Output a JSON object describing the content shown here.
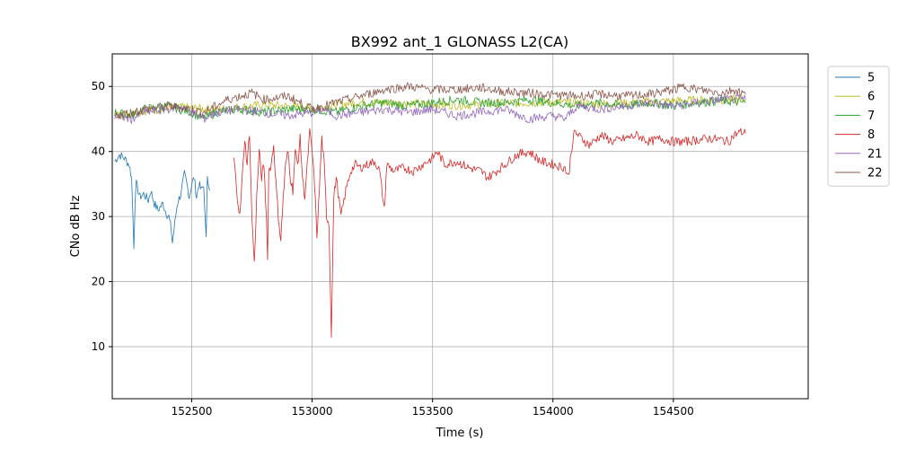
{
  "chart_data": {
    "type": "line",
    "title": "BX992 ant_1 GLONASS L2(CA)",
    "xlabel": "Time (s)",
    "ylabel": "CNo dB Hz",
    "xlim": [
      152170,
      155060
    ],
    "ylim": [
      2,
      55
    ],
    "xticks": [
      152500,
      153000,
      153500,
      154000,
      154500
    ],
    "yticks": [
      10,
      20,
      30,
      40,
      50
    ],
    "grid": true,
    "legend_position": "upper-right-outside",
    "series": [
      {
        "name": "5",
        "color": "#1f77b4",
        "points": [
          [
            152180,
            38.5
          ],
          [
            152200,
            39.5
          ],
          [
            152220,
            39
          ],
          [
            152240,
            38
          ],
          [
            152250,
            36
          ],
          [
            152255,
            31
          ],
          [
            152260,
            25.5
          ],
          [
            152265,
            33
          ],
          [
            152270,
            35
          ],
          [
            152285,
            33
          ],
          [
            152300,
            33.5
          ],
          [
            152320,
            32.5
          ],
          [
            152330,
            34
          ],
          [
            152345,
            32
          ],
          [
            152360,
            31
          ],
          [
            152380,
            32
          ],
          [
            152395,
            30.5
          ],
          [
            152405,
            30
          ],
          [
            152415,
            28
          ],
          [
            152420,
            26
          ],
          [
            152430,
            29
          ],
          [
            152440,
            32
          ],
          [
            152455,
            33.5
          ],
          [
            152470,
            36.5
          ],
          [
            152480,
            35
          ],
          [
            152490,
            33
          ],
          [
            152500,
            35
          ],
          [
            152510,
            36
          ],
          [
            152520,
            33
          ],
          [
            152530,
            35
          ],
          [
            152540,
            34
          ],
          [
            152550,
            35
          ],
          [
            152555,
            30
          ],
          [
            152560,
            26.3
          ],
          [
            152565,
            36.5
          ],
          [
            152575,
            34
          ]
        ]
      },
      {
        "name": "6",
        "color": "#bcbd22",
        "points": [
          [
            152180,
            45.5
          ],
          [
            152300,
            46.2
          ],
          [
            152450,
            46.8
          ],
          [
            152600,
            46.4
          ],
          [
            152800,
            47.2
          ],
          [
            153000,
            46.7
          ],
          [
            153200,
            47.6
          ],
          [
            153400,
            47.4
          ],
          [
            153600,
            47.1
          ],
          [
            153800,
            47.4
          ],
          [
            154000,
            47.6
          ],
          [
            154200,
            47.3
          ],
          [
            154400,
            47.6
          ],
          [
            154600,
            47.9
          ],
          [
            154800,
            48
          ]
        ]
      },
      {
        "name": "7",
        "color": "#2ca02c",
        "points": [
          [
            152180,
            46
          ],
          [
            152250,
            45.5
          ],
          [
            152300,
            46.5
          ],
          [
            152400,
            47
          ],
          [
            152500,
            46
          ],
          [
            152550,
            45
          ],
          [
            152600,
            46
          ],
          [
            152700,
            46.5
          ],
          [
            152800,
            46
          ],
          [
            152900,
            46.5
          ],
          [
            153000,
            46.5
          ],
          [
            153100,
            46
          ],
          [
            153200,
            47
          ],
          [
            153300,
            47.5
          ],
          [
            153400,
            47
          ],
          [
            153500,
            47.5
          ],
          [
            153600,
            48
          ],
          [
            153700,
            47.5
          ],
          [
            153800,
            47.5
          ],
          [
            153900,
            48
          ],
          [
            154000,
            47.5
          ],
          [
            154100,
            47
          ],
          [
            154200,
            47.5
          ],
          [
            154300,
            47
          ],
          [
            154400,
            47.5
          ],
          [
            154500,
            47
          ],
          [
            154600,
            47.5
          ],
          [
            154700,
            47.8
          ],
          [
            154800,
            47.5
          ]
        ]
      },
      {
        "name": "8",
        "color": "#d62728",
        "points": [
          [
            152675,
            39
          ],
          [
            152690,
            33
          ],
          [
            152700,
            30
          ],
          [
            152710,
            36
          ],
          [
            152720,
            42
          ],
          [
            152730,
            38
          ],
          [
            152740,
            43
          ],
          [
            152750,
            30
          ],
          [
            152760,
            22.7
          ],
          [
            152770,
            33
          ],
          [
            152780,
            40
          ],
          [
            152790,
            36
          ],
          [
            152800,
            38
          ],
          [
            152810,
            30
          ],
          [
            152815,
            24
          ],
          [
            152820,
            37
          ],
          [
            152830,
            38
          ],
          [
            152840,
            41
          ],
          [
            152850,
            35
          ],
          [
            152860,
            30
          ],
          [
            152870,
            26.3
          ],
          [
            152880,
            33
          ],
          [
            152890,
            38
          ],
          [
            152900,
            40
          ],
          [
            152910,
            36
          ],
          [
            152920,
            34
          ],
          [
            152930,
            40
          ],
          [
            152940,
            38
          ],
          [
            152950,
            42
          ],
          [
            152960,
            36
          ],
          [
            152970,
            33
          ],
          [
            152980,
            38
          ],
          [
            152990,
            43
          ],
          [
            153000,
            40
          ],
          [
            153010,
            35
          ],
          [
            153020,
            27
          ],
          [
            153030,
            34
          ],
          [
            153040,
            42
          ],
          [
            153050,
            38
          ],
          [
            153060,
            30
          ],
          [
            153070,
            29
          ],
          [
            153080,
            12
          ],
          [
            153090,
            33
          ],
          [
            153100,
            36
          ],
          [
            153120,
            30
          ],
          [
            153140,
            34
          ],
          [
            153160,
            37
          ],
          [
            153180,
            38
          ],
          [
            153200,
            37.5
          ],
          [
            153230,
            38
          ],
          [
            153260,
            38.5
          ],
          [
            153280,
            37
          ],
          [
            153300,
            31
          ],
          [
            153310,
            38
          ],
          [
            153340,
            37
          ],
          [
            153380,
            37.5
          ],
          [
            153420,
            37
          ],
          [
            153460,
            38
          ],
          [
            153500,
            39
          ],
          [
            153520,
            40
          ],
          [
            153550,
            38
          ],
          [
            153600,
            38.5
          ],
          [
            153650,
            37.5
          ],
          [
            153700,
            37
          ],
          [
            153730,
            36
          ],
          [
            153750,
            36.5
          ],
          [
            153800,
            38
          ],
          [
            153850,
            39.5
          ],
          [
            153900,
            40
          ],
          [
            153950,
            38.5
          ],
          [
            154000,
            38
          ],
          [
            154050,
            37.5
          ],
          [
            154065,
            36
          ],
          [
            154075,
            40
          ],
          [
            154090,
            43
          ],
          [
            154120,
            42
          ],
          [
            154150,
            41
          ],
          [
            154200,
            42.5
          ],
          [
            154250,
            41.5
          ],
          [
            154300,
            42
          ],
          [
            154350,
            42.5
          ],
          [
            154400,
            41.5
          ],
          [
            154450,
            42
          ],
          [
            154500,
            41.5
          ],
          [
            154550,
            41.5
          ],
          [
            154600,
            41.8
          ],
          [
            154650,
            42
          ],
          [
            154700,
            41.8
          ],
          [
            154730,
            41.5
          ],
          [
            154750,
            42.5
          ],
          [
            154780,
            43
          ],
          [
            154800,
            42.8
          ]
        ]
      },
      {
        "name": "21",
        "color": "#9467bd",
        "points": [
          [
            152180,
            45.5
          ],
          [
            152250,
            45
          ],
          [
            152300,
            46
          ],
          [
            152400,
            46.5
          ],
          [
            152450,
            47
          ],
          [
            152500,
            46
          ],
          [
            152550,
            45
          ],
          [
            152600,
            46
          ],
          [
            152700,
            46.5
          ],
          [
            152800,
            46
          ],
          [
            152900,
            45.5
          ],
          [
            153000,
            46
          ],
          [
            153050,
            46.5
          ],
          [
            153100,
            45.5
          ],
          [
            153200,
            46
          ],
          [
            153300,
            46.5
          ],
          [
            153400,
            46
          ],
          [
            153500,
            46.5
          ],
          [
            153600,
            45.5
          ],
          [
            153700,
            46
          ],
          [
            153800,
            46.5
          ],
          [
            153900,
            45
          ],
          [
            154000,
            45.5
          ],
          [
            154050,
            45
          ],
          [
            154100,
            47
          ],
          [
            154200,
            46.5
          ],
          [
            154300,
            47
          ],
          [
            154400,
            47.5
          ],
          [
            154500,
            47
          ],
          [
            154600,
            47.5
          ],
          [
            154700,
            48
          ],
          [
            154800,
            48
          ]
        ]
      },
      {
        "name": "22",
        "color": "#8c564b",
        "points": [
          [
            152180,
            45.5
          ],
          [
            152250,
            46
          ],
          [
            152300,
            46.5
          ],
          [
            152400,
            47
          ],
          [
            152500,
            46.5
          ],
          [
            152550,
            46
          ],
          [
            152600,
            47
          ],
          [
            152650,
            48
          ],
          [
            152700,
            48.5
          ],
          [
            152750,
            49
          ],
          [
            152800,
            48
          ],
          [
            152900,
            48.5
          ],
          [
            152950,
            47.5
          ],
          [
            153000,
            46.5
          ],
          [
            153050,
            47
          ],
          [
            153100,
            47.5
          ],
          [
            153200,
            48.5
          ],
          [
            153300,
            49.5
          ],
          [
            153400,
            50
          ],
          [
            153500,
            49.5
          ],
          [
            153600,
            49.5
          ],
          [
            153700,
            49.8
          ],
          [
            153800,
            49.2
          ],
          [
            153900,
            49
          ],
          [
            154000,
            48.7
          ],
          [
            154100,
            48.5
          ],
          [
            154200,
            48.8
          ],
          [
            154300,
            48.5
          ],
          [
            154400,
            48.8
          ],
          [
            154500,
            49.5
          ],
          [
            154550,
            50
          ],
          [
            154600,
            49.5
          ],
          [
            154700,
            49
          ],
          [
            154750,
            49.5
          ],
          [
            154800,
            48.8
          ]
        ]
      }
    ]
  }
}
